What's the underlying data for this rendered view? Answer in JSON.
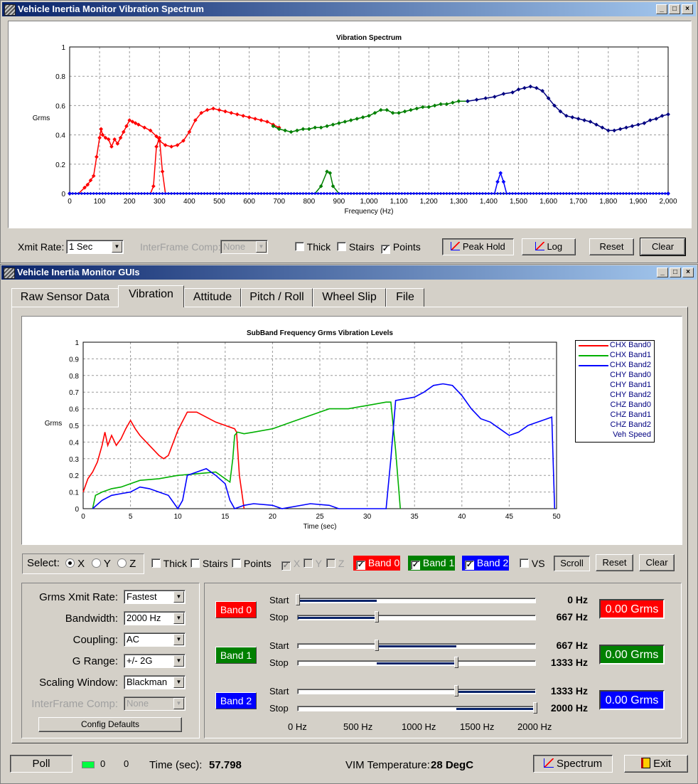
{
  "spectrum_window": {
    "title": "Vehicle Inertia Monitor Vibration Spectrum",
    "title_buttons": [
      "_",
      "□",
      "×"
    ],
    "xmit_rate_label": "Xmit Rate:",
    "xmit_rate_value": "1 Sec",
    "interframe_label": "InterFrame Comp:",
    "interframe_value": "None",
    "thick_label": "Thick",
    "stairs_label": "Stairs",
    "points_label": "Points",
    "peak_hold_label": "Peak Hold",
    "log_label": "Log",
    "reset_label": "Reset",
    "clear_label": "Clear"
  },
  "gui_window": {
    "title": "Vehicle Inertia Monitor GUIs",
    "title_buttons": [
      "_",
      "□",
      "×"
    ],
    "tabs": [
      "Raw Sensor Data",
      "Vibration",
      "Attitude",
      "Pitch / Roll",
      "Wheel Slip",
      "File"
    ],
    "select_label": "Select:",
    "axis_x": "X",
    "axis_y": "Y",
    "axis_z": "Z",
    "thick_label": "Thick",
    "stairs_label": "Stairs",
    "points_label": "Points",
    "dis_x": "X",
    "dis_y": "Y",
    "dis_z": "Z",
    "band0_label": "Band 0",
    "band1_label": "Band 1",
    "band2_label": "Band 2",
    "vs_label": "VS",
    "scroll_label": "Scroll",
    "reset_label": "Reset",
    "clear_label": "Clear",
    "settings": {
      "grms_rate_label": "Grms Xmit Rate:",
      "grms_rate_value": "Fastest",
      "bandwidth_label": "Bandwidth:",
      "bandwidth_value": "2000 Hz",
      "coupling_label": "Coupling:",
      "coupling_value": "AC",
      "grange_label": "G Range:",
      "grange_value": "+/- 2G",
      "scaling_label": "Scaling Window:",
      "scaling_value": "Blackman",
      "interframe_label": "InterFrame Comp:",
      "interframe_value": "None",
      "config_defaults": "Config Defaults"
    },
    "bands": [
      {
        "name": "Band 0",
        "start_label": "Start",
        "stop_label": "Stop",
        "start_hz": "0 Hz",
        "stop_hz": "667 Hz",
        "grms": "0.00 Grms",
        "color": "#ff0000"
      },
      {
        "name": "Band 1",
        "start_label": "Start",
        "stop_label": "Stop",
        "start_hz": "667 Hz",
        "stop_hz": "1333 Hz",
        "grms": "0.00 Grms",
        "color": "#008000"
      },
      {
        "name": "Band 2",
        "start_label": "Start",
        "stop_label": "Stop",
        "start_hz": "1333 Hz",
        "stop_hz": "2000 Hz",
        "grms": "0.00 Grms",
        "color": "#0000ff"
      }
    ],
    "slider_scale": [
      "0 Hz",
      "500 Hz",
      "1000 Hz",
      "1500 Hz",
      "2000 Hz"
    ],
    "status": {
      "poll_label": "Poll",
      "count1": "0",
      "count2": "0",
      "time_label": "Time (sec):",
      "time_value": "57.798",
      "temp_label": "VIM Temperature:",
      "temp_value": "28 DegC",
      "spectrum_label": "Spectrum",
      "exit_label": "Exit"
    }
  },
  "chart_data": [
    {
      "type": "line",
      "title": "Vibration Spectrum",
      "xlabel": "Frequency (Hz)",
      "ylabel": "Grms",
      "xlim": [
        0,
        2000
      ],
      "ylim": [
        0,
        1
      ],
      "xticks": [
        "0",
        "100",
        "200",
        "300",
        "400",
        "500",
        "600",
        "700",
        "800",
        "900",
        "1,000",
        "1,100",
        "1,200",
        "1,300",
        "1,400",
        "1,500",
        "1,600",
        "1,700",
        "1,800",
        "1,900",
        "2,000"
      ],
      "yticks": [
        "0",
        "0.2",
        "0.4",
        "0.6",
        "0.8",
        "1"
      ],
      "grid": true,
      "points_shown": true,
      "series": [
        {
          "color": "#ff0000",
          "x": [
            0,
            30,
            50,
            60,
            70,
            80,
            90,
            100,
            105,
            110,
            120,
            130,
            140,
            150,
            160,
            170,
            180,
            190,
            200,
            210,
            220,
            230,
            250,
            270,
            290,
            300,
            320,
            340,
            360,
            380,
            400,
            420,
            440,
            460,
            480,
            500,
            520,
            540,
            560,
            580,
            600,
            620,
            640,
            660,
            680,
            700
          ],
          "y": [
            0,
            0,
            0.04,
            0.06,
            0.09,
            0.12,
            0.25,
            0.38,
            0.44,
            0.4,
            0.38,
            0.37,
            0.32,
            0.37,
            0.34,
            0.38,
            0.42,
            0.46,
            0.5,
            0.49,
            0.48,
            0.47,
            0.45,
            0.43,
            0.39,
            0.36,
            0.33,
            0.32,
            0.33,
            0.36,
            0.42,
            0.5,
            0.55,
            0.57,
            0.58,
            0.57,
            0.56,
            0.55,
            0.54,
            0.53,
            0.52,
            0.51,
            0.5,
            0.49,
            0.47,
            0.45
          ]
        },
        {
          "color": "#008000",
          "x": [
            680,
            700,
            720,
            740,
            760,
            780,
            800,
            820,
            840,
            860,
            880,
            900,
            920,
            940,
            960,
            980,
            1000,
            1020,
            1040,
            1060,
            1080,
            1100,
            1120,
            1140,
            1160,
            1180,
            1200,
            1220,
            1240,
            1260,
            1280,
            1300,
            1330
          ],
          "y": [
            0.46,
            0.44,
            0.43,
            0.42,
            0.43,
            0.44,
            0.44,
            0.45,
            0.45,
            0.46,
            0.47,
            0.48,
            0.49,
            0.5,
            0.51,
            0.52,
            0.53,
            0.55,
            0.57,
            0.57,
            0.55,
            0.55,
            0.56,
            0.57,
            0.58,
            0.59,
            0.59,
            0.6,
            0.61,
            0.61,
            0.62,
            0.63,
            0.63
          ]
        },
        {
          "color": "#000080",
          "x": [
            1330,
            1360,
            1390,
            1420,
            1450,
            1480,
            1500,
            1520,
            1540,
            1560,
            1580,
            1600,
            1620,
            1640,
            1660,
            1680,
            1700,
            1720,
            1740,
            1760,
            1780,
            1800,
            1820,
            1840,
            1860,
            1880,
            1900,
            1920,
            1940,
            1960,
            1980,
            2000
          ],
          "y": [
            0.63,
            0.64,
            0.65,
            0.66,
            0.68,
            0.69,
            0.71,
            0.72,
            0.73,
            0.72,
            0.7,
            0.65,
            0.6,
            0.56,
            0.53,
            0.52,
            0.51,
            0.5,
            0.49,
            0.47,
            0.45,
            0.43,
            0.43,
            0.44,
            0.45,
            0.46,
            0.47,
            0.48,
            0.5,
            0.51,
            0.53,
            0.54
          ]
        },
        {
          "color": "#ff0000",
          "x": [
            0,
            270,
            280,
            290,
            300,
            310,
            320,
            2000
          ],
          "y": [
            0,
            0,
            0.05,
            0.32,
            0.38,
            0.15,
            0,
            0
          ]
        },
        {
          "color": "#008000",
          "x": [
            0,
            820,
            840,
            860,
            870,
            880,
            900,
            2000
          ],
          "y": [
            0,
            0,
            0.05,
            0.15,
            0.14,
            0.05,
            0,
            0
          ]
        },
        {
          "color": "#0000ff",
          "x": [
            0,
            1420,
            1430,
            1440,
            1450,
            1460,
            2000
          ],
          "y": [
            0,
            0,
            0.08,
            0.14,
            0.08,
            0,
            0
          ]
        }
      ]
    },
    {
      "type": "line",
      "title": "SubBand Frequency Grms Vibration Levels",
      "xlabel": "Time (sec)",
      "ylabel": "Grms",
      "xlim": [
        0,
        50
      ],
      "ylim": [
        0,
        1
      ],
      "xticks": [
        "0",
        "5",
        "10",
        "15",
        "20",
        "25",
        "30",
        "35",
        "40",
        "45",
        "50"
      ],
      "yticks": [
        "0",
        "0.1",
        "0.2",
        "0.3",
        "0.4",
        "0.5",
        "0.6",
        "0.7",
        "0.8",
        "0.9",
        "1"
      ],
      "grid": true,
      "legend": [
        "CHX Band0",
        "CHX Band1",
        "CHX Band2",
        "CHY Band0",
        "CHY Band1",
        "CHY Band2",
        "CHZ Band0",
        "CHZ Band1",
        "CHZ Band2",
        "Veh Speed"
      ],
      "legend_colors": [
        "#ff0000",
        "#00b000",
        "#0000ff",
        "",
        "",
        "",
        "",
        "",
        "",
        ""
      ],
      "legend_position": "right",
      "series": [
        {
          "name": "CHX Band0",
          "color": "#ff0000",
          "x": [
            0,
            0.5,
            1,
            1.5,
            2,
            2.3,
            2.6,
            3,
            3.5,
            4,
            4.5,
            5,
            5.5,
            6,
            7,
            8,
            8.5,
            9,
            10,
            11,
            12,
            13,
            14,
            15,
            16,
            16.2,
            16.5,
            17
          ],
          "y": [
            0.1,
            0.18,
            0.22,
            0.28,
            0.38,
            0.46,
            0.38,
            0.44,
            0.38,
            0.42,
            0.48,
            0.53,
            0.48,
            0.44,
            0.38,
            0.32,
            0.3,
            0.32,
            0.47,
            0.58,
            0.58,
            0.55,
            0.52,
            0.5,
            0.48,
            0.46,
            0.2,
            0
          ]
        },
        {
          "name": "CHX Band1",
          "color": "#00b000",
          "x": [
            1,
            1.3,
            2,
            3,
            4,
            5,
            6,
            8,
            10,
            12,
            14,
            15.5,
            15.8,
            16,
            16.3,
            17,
            18,
            20,
            22,
            25,
            26,
            28,
            30,
            32,
            32.5,
            33,
            33.5
          ],
          "y": [
            0,
            0.08,
            0.1,
            0.12,
            0.13,
            0.15,
            0.17,
            0.18,
            0.2,
            0.21,
            0.22,
            0.16,
            0.3,
            0.44,
            0.46,
            0.45,
            0.46,
            0.48,
            0.52,
            0.58,
            0.6,
            0.6,
            0.62,
            0.64,
            0.64,
            0.35,
            0
          ]
        },
        {
          "name": "CHX Band2",
          "color": "#0000ff",
          "x": [
            1,
            2,
            3,
            4,
            5,
            6,
            7,
            8,
            9,
            10,
            10.5,
            11,
            12,
            13,
            14,
            15,
            15.5,
            16,
            17,
            18,
            20,
            21,
            24,
            26,
            27,
            32,
            32.5,
            33,
            34,
            35,
            36,
            37,
            38,
            39,
            40,
            41,
            42,
            43,
            44,
            45,
            46,
            47,
            48,
            49,
            49.5,
            49.8
          ],
          "y": [
            0,
            0.05,
            0.08,
            0.09,
            0.1,
            0.13,
            0.12,
            0.1,
            0.08,
            0,
            0.05,
            0.2,
            0.22,
            0.24,
            0.2,
            0.15,
            0.05,
            0,
            0.02,
            0.03,
            0.02,
            0,
            0.03,
            0.02,
            0,
            0,
            0.3,
            0.65,
            0.66,
            0.67,
            0.7,
            0.74,
            0.75,
            0.74,
            0.68,
            0.6,
            0.54,
            0.52,
            0.48,
            0.44,
            0.46,
            0.5,
            0.52,
            0.54,
            0.55,
            0
          ]
        }
      ]
    }
  ]
}
